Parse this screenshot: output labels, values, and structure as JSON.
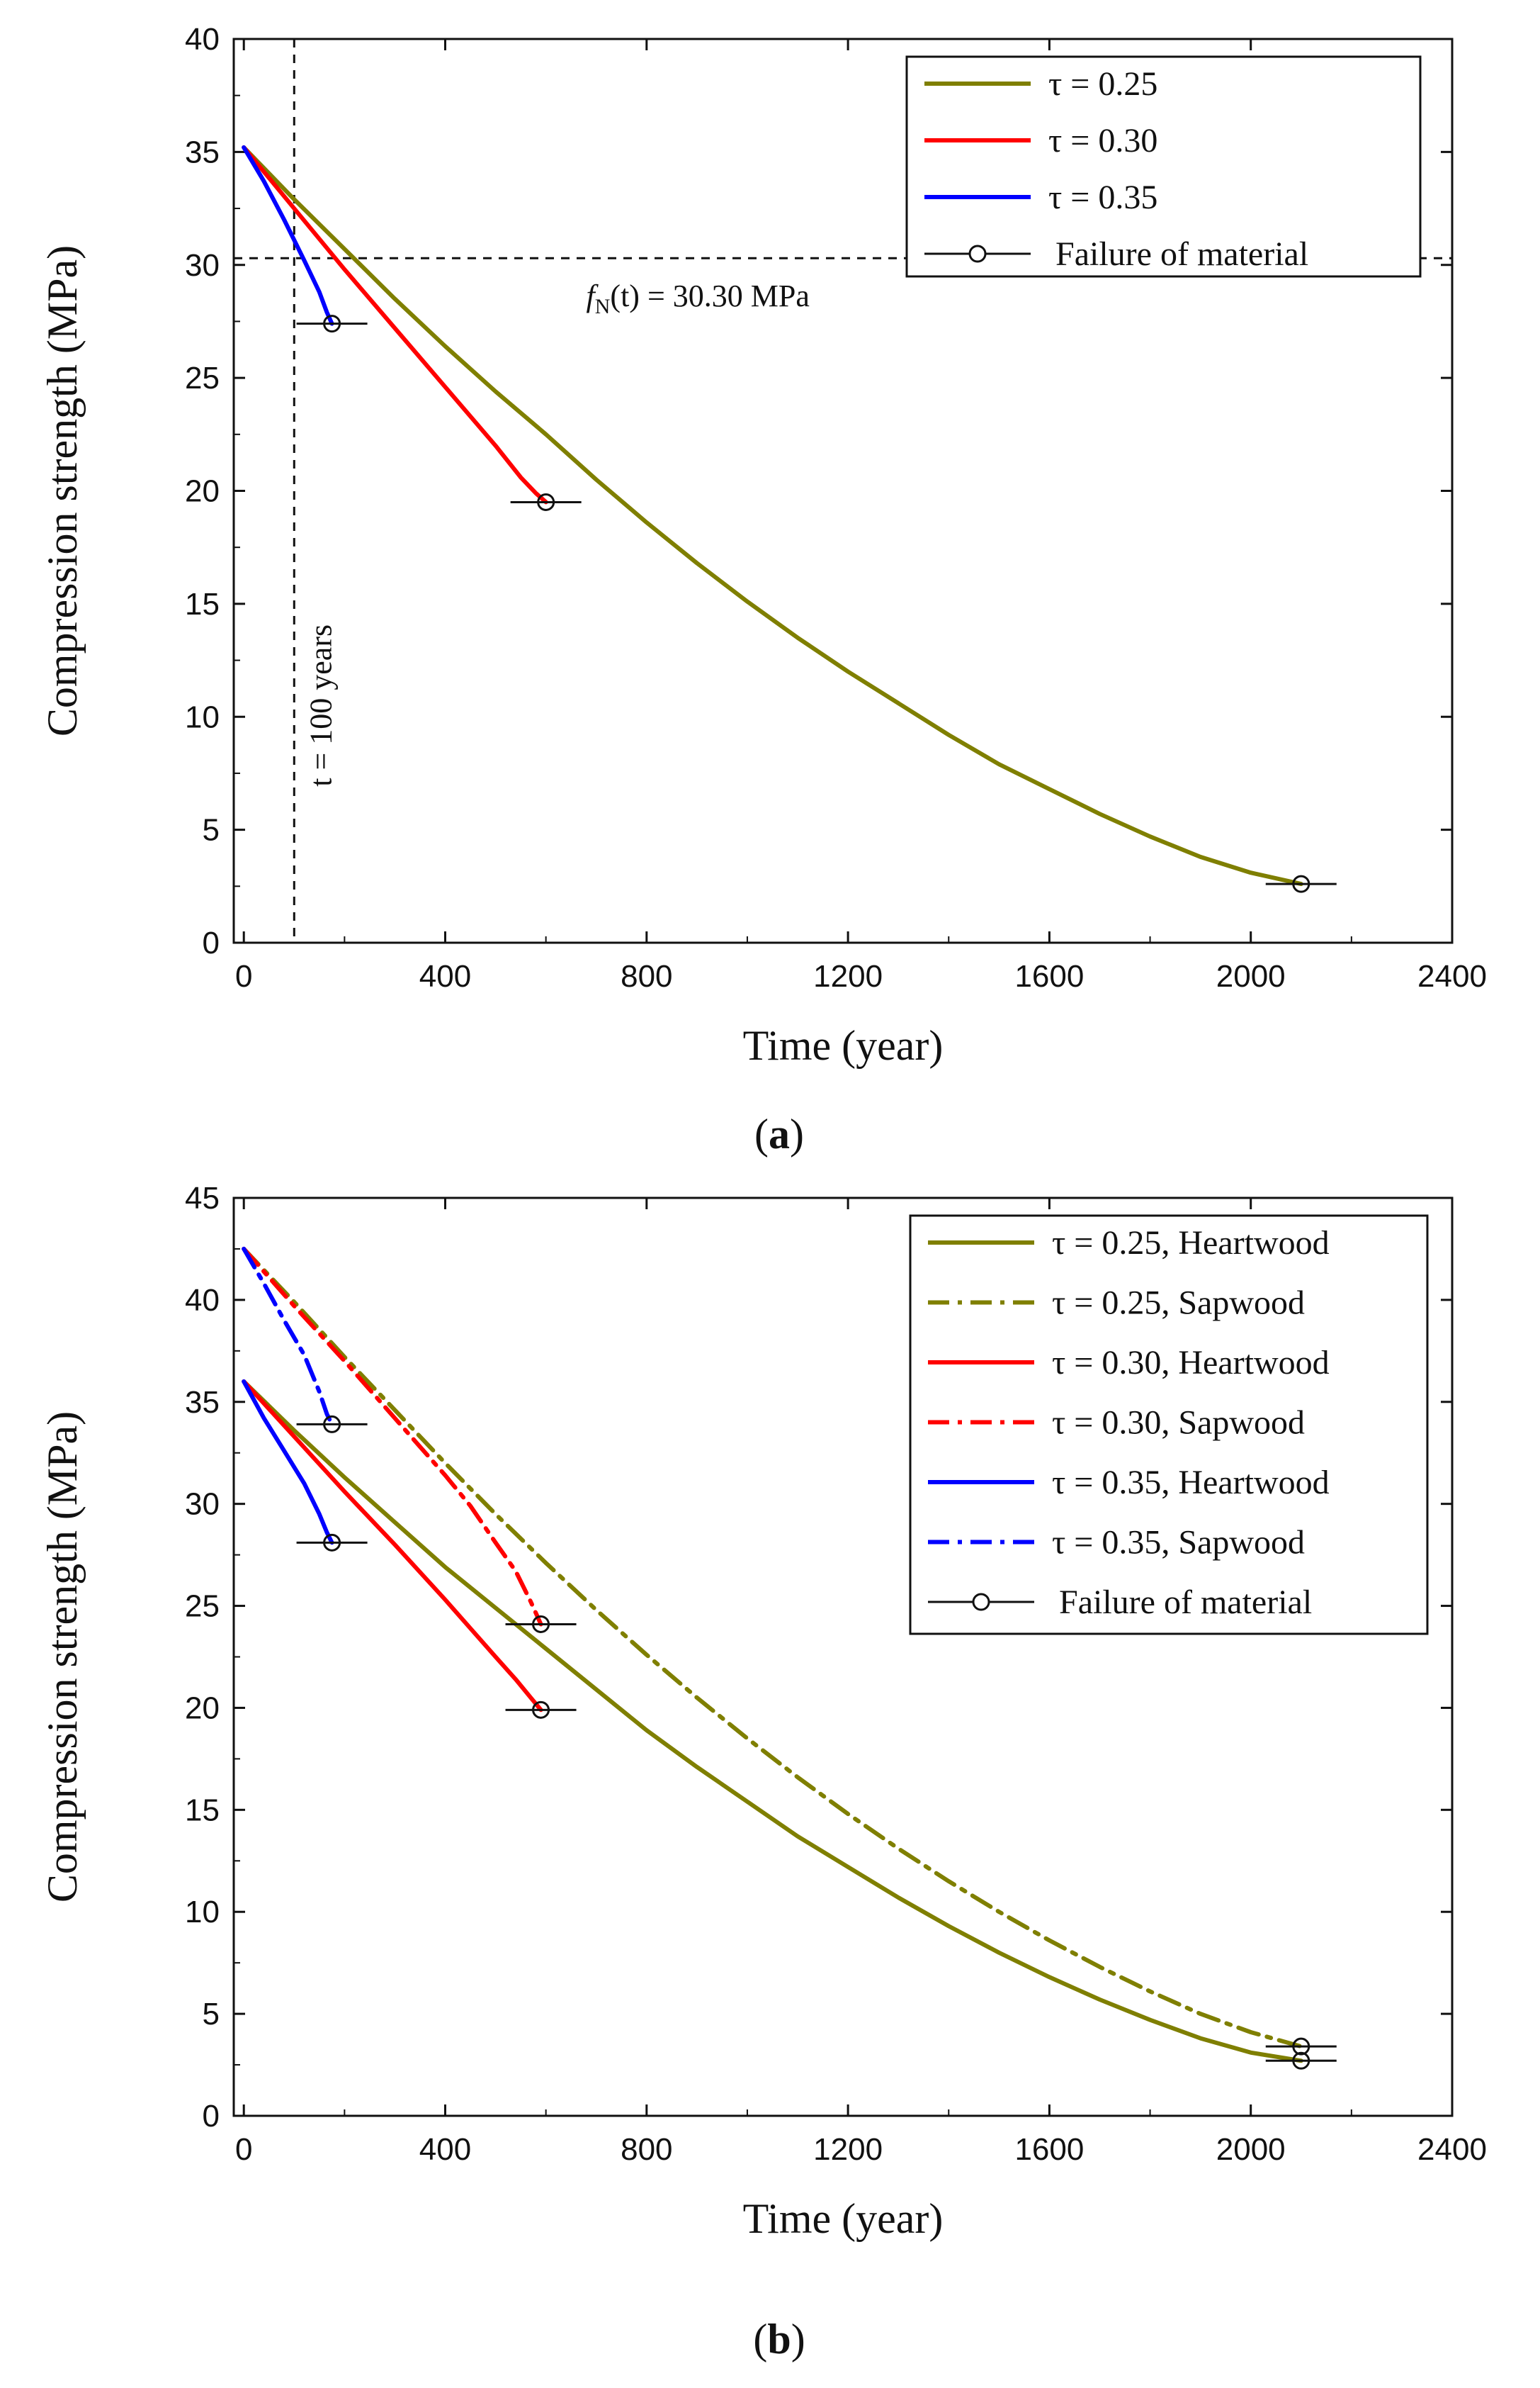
{
  "chart_data": [
    {
      "type": "line",
      "panel_label": "a",
      "xlabel": "Time (year)",
      "ylabel": "Compression strength (MPa)",
      "xlim": [
        -20,
        2400
      ],
      "ylim": [
        0,
        40
      ],
      "xticks": [
        0,
        400,
        800,
        1200,
        1600,
        2000,
        2400
      ],
      "yticks": [
        0,
        5,
        10,
        15,
        20,
        25,
        30,
        35,
        40
      ],
      "grid": false,
      "legend_position": "top-right",
      "series": [
        {
          "name": "τ = 0.25",
          "color": "#7f7f00",
          "style": "solid",
          "x": [
            0,
            100,
            200,
            300,
            400,
            500,
            600,
            700,
            800,
            900,
            1000,
            1100,
            1200,
            1300,
            1400,
            1500,
            1600,
            1700,
            1800,
            1900,
            2000,
            2100
          ],
          "y": [
            35.2,
            32.9,
            30.7,
            28.5,
            26.4,
            24.4,
            22.5,
            20.5,
            18.6,
            16.8,
            15.1,
            13.5,
            12.0,
            10.6,
            9.2,
            7.9,
            6.8,
            5.7,
            4.7,
            3.8,
            3.1,
            2.6
          ],
          "failure": {
            "x": 2100,
            "y": 2.6
          }
        },
        {
          "name": "τ = 0.30",
          "color": "#ff0000",
          "style": "solid",
          "x": [
            0,
            100,
            200,
            300,
            400,
            450,
            500,
            550,
            580,
            600
          ],
          "y": [
            35.2,
            32.5,
            29.8,
            27.2,
            24.6,
            23.3,
            22.0,
            20.6,
            19.9,
            19.5
          ],
          "failure": {
            "x": 600,
            "y": 19.5
          }
        },
        {
          "name": "τ = 0.35",
          "color": "#0000ff",
          "style": "solid",
          "x": [
            0,
            40,
            80,
            120,
            150,
            165,
            175
          ],
          "y": [
            35.2,
            33.7,
            32.0,
            30.2,
            28.8,
            27.9,
            27.4
          ],
          "failure": {
            "x": 175,
            "y": 27.4
          }
        }
      ],
      "failure_legend": "Failure of material",
      "reference_lines": [
        {
          "orientation": "horizontal",
          "value": 30.3,
          "label_prefix": "f",
          "label_sub": "N",
          "label_suffix": "(t) = 30.30 MPa"
        },
        {
          "orientation": "vertical",
          "value": 100,
          "label": "t = 100 years"
        }
      ]
    },
    {
      "type": "line",
      "panel_label": "b",
      "xlabel": "Time (year)",
      "ylabel": "Compression strength (MPa)",
      "xlim": [
        -20,
        2400
      ],
      "ylim": [
        0,
        45
      ],
      "xticks": [
        0,
        400,
        800,
        1200,
        1600,
        2000,
        2400
      ],
      "yticks": [
        0,
        5,
        10,
        15,
        20,
        25,
        30,
        35,
        40,
        45
      ],
      "grid": false,
      "legend_position": "top-right",
      "series": [
        {
          "name": "τ = 0.25, Heartwood",
          "color": "#7f7f00",
          "style": "solid",
          "x": [
            0,
            100,
            200,
            300,
            400,
            500,
            600,
            700,
            800,
            900,
            1000,
            1100,
            1200,
            1300,
            1400,
            1500,
            1600,
            1700,
            1800,
            1900,
            2000,
            2100
          ],
          "y": [
            36.0,
            33.6,
            31.3,
            29.1,
            26.9,
            24.9,
            22.9,
            20.9,
            18.9,
            17.1,
            15.4,
            13.7,
            12.2,
            10.7,
            9.3,
            8.0,
            6.8,
            5.7,
            4.7,
            3.8,
            3.1,
            2.7
          ],
          "failure": {
            "x": 2100,
            "y": 2.7
          }
        },
        {
          "name": "τ = 0.25, Sapwood",
          "color": "#7f7f00",
          "style": "dashdot",
          "x": [
            0,
            100,
            200,
            300,
            400,
            500,
            600,
            700,
            800,
            900,
            1000,
            1100,
            1200,
            1300,
            1400,
            1500,
            1600,
            1700,
            1800,
            1900,
            2000,
            2100
          ],
          "y": [
            42.5,
            39.9,
            37.2,
            34.6,
            32.0,
            29.5,
            27.1,
            24.8,
            22.6,
            20.5,
            18.5,
            16.6,
            14.8,
            13.1,
            11.5,
            10.0,
            8.6,
            7.3,
            6.1,
            5.0,
            4.1,
            3.4
          ],
          "failure": {
            "x": 2100,
            "y": 3.4
          }
        },
        {
          "name": "τ = 0.30, Heartwood",
          "color": "#ff0000",
          "style": "solid",
          "x": [
            0,
            100,
            200,
            300,
            400,
            450,
            500,
            540,
            570,
            590
          ],
          "y": [
            36.0,
            33.3,
            30.6,
            28.0,
            25.3,
            23.9,
            22.5,
            21.4,
            20.5,
            19.9
          ],
          "failure": {
            "x": 590,
            "y": 19.9
          }
        },
        {
          "name": "τ = 0.30, Sapwood",
          "color": "#ff0000",
          "style": "dashdot",
          "x": [
            0,
            100,
            200,
            300,
            400,
            450,
            500,
            540,
            570,
            590
          ],
          "y": [
            42.5,
            39.7,
            37.0,
            34.2,
            31.4,
            29.9,
            28.1,
            26.7,
            25.2,
            24.1
          ],
          "failure": {
            "x": 590,
            "y": 24.1
          }
        },
        {
          "name": "τ = 0.35, Heartwood",
          "color": "#0000ff",
          "style": "solid",
          "x": [
            0,
            40,
            80,
            120,
            150,
            165,
            175
          ],
          "y": [
            36.0,
            34.2,
            32.6,
            31.0,
            29.5,
            28.6,
            28.1
          ],
          "failure": {
            "x": 175,
            "y": 28.1
          }
        },
        {
          "name": "τ = 0.35, Sapwood",
          "color": "#0000ff",
          "style": "dashdot",
          "x": [
            0,
            40,
            80,
            120,
            150,
            165,
            175
          ],
          "y": [
            42.5,
            40.8,
            39.0,
            37.3,
            35.5,
            34.4,
            33.9
          ],
          "failure": {
            "x": 175,
            "y": 33.9
          }
        }
      ],
      "failure_legend": "Failure of material"
    }
  ]
}
